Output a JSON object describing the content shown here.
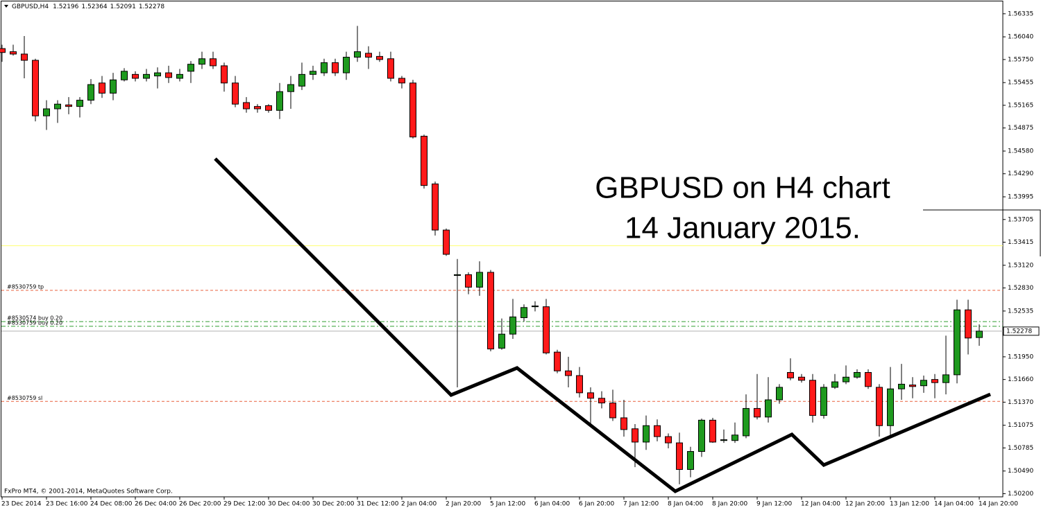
{
  "chart_data": {
    "type": "candlestick",
    "symbol": "GBPUSD,H4",
    "ohlc": [
      1.52196,
      1.52364,
      1.52091,
      1.52278
    ],
    "annotation": [
      "GBPUSD on H4 chart",
      "14 January 2015."
    ],
    "footer": "FxPro MT4, © 2001-2014, MetaQuotes Software Corp.",
    "categories": [
      "23 Dec 2014",
      null,
      null,
      null,
      "23 Dec 16:00",
      null,
      null,
      null,
      "24 Dec 08:00",
      null,
      null,
      null,
      "26 Dec 04:00",
      null,
      null,
      null,
      "26 Dec 20:00",
      null,
      null,
      null,
      "29 Dec 12:00",
      null,
      null,
      null,
      "30 Dec 04:00",
      null,
      null,
      null,
      "30 Dec 20:00",
      null,
      null,
      null,
      "31 Dec 12:00",
      null,
      null,
      null,
      "2 Jan 04:00",
      null,
      null,
      null,
      "2 Jan 20:00",
      null,
      null,
      null,
      "5 Jan 12:00",
      null,
      null,
      null,
      "6 Jan 04:00",
      null,
      null,
      null,
      "6 Jan 20:00",
      null,
      null,
      null,
      "7 Jan 12:00",
      null,
      null,
      null,
      "8 Jan 04:00",
      null,
      null,
      null,
      "8 Jan 20:00",
      null,
      null,
      null,
      "9 Jan 12:00",
      null,
      null,
      null,
      "12 Jan 04:00",
      null,
      null,
      null,
      "12 Jan 20:00",
      null,
      null,
      null,
      "13 Jan 12:00",
      null,
      null,
      null,
      "14 Jan 04:00",
      null,
      null,
      null,
      "14 Jan 20:00"
    ],
    "open": [
      1.5589,
      1.5585,
      1.5582,
      1.5574,
      1.5503,
      1.5512,
      1.5517,
      1.5515,
      1.5523,
      1.5545,
      1.5532,
      1.5549,
      1.5556,
      1.5551,
      1.5554,
      1.5558,
      1.5551,
      1.556,
      1.5569,
      1.5576,
      1.5567,
      1.5545,
      1.552,
      1.5515,
      1.5516,
      1.551,
      1.5534,
      1.5541,
      1.5556,
      1.5558,
      1.5571,
      1.5558,
      1.5578,
      1.5583,
      1.5579,
      1.5576,
      1.5551,
      1.5545,
      1.5477,
      1.5416,
      1.5357,
      1.5299,
      1.53,
      1.5284,
      1.5303,
      1.5206,
      1.5224,
      1.5245,
      1.5259,
      1.5259,
      1.5201,
      1.5177,
      1.5171,
      1.5149,
      1.5142,
      1.5136,
      1.5117,
      1.5103,
      1.5086,
      1.5107,
      1.5093,
      1.5085,
      1.5051,
      1.5074,
      1.5114,
      1.5088,
      1.5088,
      1.5094,
      1.5129,
      1.5118,
      1.514,
      1.5175,
      1.5169,
      1.5165,
      1.512,
      1.5156,
      1.5163,
      1.5169,
      1.5175,
      1.5156,
      1.5107,
      1.5154,
      1.5159,
      1.5158,
      1.5166,
      1.5162,
      1.5172,
      1.5255,
      1.52196
    ],
    "high": [
      1.5594,
      1.5594,
      1.5605,
      1.5576,
      1.5523,
      1.5523,
      1.5527,
      1.5527,
      1.555,
      1.5554,
      1.5558,
      1.5564,
      1.556,
      1.5563,
      1.5565,
      1.5567,
      1.5563,
      1.5573,
      1.5585,
      1.5585,
      1.5571,
      1.5554,
      1.5527,
      1.5518,
      1.5518,
      1.5545,
      1.5554,
      1.5571,
      1.5567,
      1.5576,
      1.5576,
      1.5585,
      1.5618,
      1.5592,
      1.5585,
      1.5585,
      1.5554,
      1.5549,
      1.5479,
      1.5419,
      1.5359,
      1.532,
      1.5303,
      1.5317,
      1.5306,
      1.5244,
      1.5269,
      1.5262,
      1.5266,
      1.5269,
      1.5204,
      1.5195,
      1.5182,
      1.5156,
      1.5151,
      1.5153,
      1.514,
      1.5109,
      1.512,
      1.5115,
      1.5097,
      1.5098,
      1.508,
      1.5116,
      1.5117,
      1.5102,
      1.5111,
      1.5147,
      1.5173,
      1.5169,
      1.516,
      1.5193,
      1.5173,
      1.5173,
      1.516,
      1.5173,
      1.5184,
      1.5179,
      1.5179,
      1.516,
      1.5182,
      1.5186,
      1.5169,
      1.5171,
      1.5173,
      1.5222,
      1.5268,
      1.5268,
      1.52364
    ],
    "low": [
      1.5572,
      1.558,
      1.5551,
      1.5496,
      1.5485,
      1.5494,
      1.5505,
      1.5501,
      1.5518,
      1.5526,
      1.5523,
      1.5547,
      1.5547,
      1.5547,
      1.5538,
      1.5545,
      1.5547,
      1.5545,
      1.5563,
      1.5563,
      1.5534,
      1.5514,
      1.5507,
      1.5507,
      1.5507,
      1.5499,
      1.5512,
      1.5536,
      1.5549,
      1.5554,
      1.5554,
      1.5549,
      1.5572,
      1.5563,
      1.5572,
      1.5547,
      1.5538,
      1.5474,
      1.541,
      1.535,
      1.5324,
      1.5156,
      1.5275,
      1.5273,
      1.5202,
      1.5204,
      1.5218,
      1.524,
      1.5253,
      1.5198,
      1.5174,
      1.5156,
      1.5143,
      1.5107,
      1.5129,
      1.5113,
      1.5093,
      1.5054,
      1.5076,
      1.5087,
      1.5078,
      1.5032,
      1.5041,
      1.5067,
      1.5085,
      1.5085,
      1.5085,
      1.5091,
      1.5115,
      1.5111,
      1.5135,
      1.5165,
      1.5162,
      1.5111,
      1.5116,
      1.5154,
      1.516,
      1.5167,
      1.5154,
      1.5093,
      1.5093,
      1.514,
      1.5142,
      1.5149,
      1.5142,
      1.5147,
      1.5161,
      1.5198,
      1.52091
    ],
    "close": [
      1.5584,
      1.5582,
      1.5574,
      1.5503,
      1.5512,
      1.5518,
      1.5515,
      1.5523,
      1.5543,
      1.5532,
      1.5549,
      1.556,
      1.5551,
      1.5556,
      1.5558,
      1.5552,
      1.5556,
      1.5569,
      1.5576,
      1.5567,
      1.5545,
      1.5518,
      1.5512,
      1.5512,
      1.551,
      1.5534,
      1.5543,
      1.5556,
      1.556,
      1.5571,
      1.5558,
      1.5578,
      1.5585,
      1.5578,
      1.5575,
      1.5551,
      1.5545,
      1.5476,
      1.5414,
      1.5357,
      1.5326,
      1.53,
      1.5284,
      1.5303,
      1.5205,
      1.5224,
      1.5246,
      1.5258,
      1.526,
      1.52,
      1.5177,
      1.5171,
      1.5149,
      1.5142,
      1.5136,
      1.5117,
      1.5102,
      1.5086,
      1.5107,
      1.5093,
      1.5085,
      1.5051,
      1.5074,
      1.5114,
      1.5086,
      1.5089,
      1.5095,
      1.5129,
      1.5118,
      1.514,
      1.5156,
      1.5168,
      1.5165,
      1.512,
      1.5156,
      1.5163,
      1.5169,
      1.5175,
      1.5157,
      1.5107,
      1.5154,
      1.516,
      1.5157,
      1.5165,
      1.5162,
      1.5172,
      1.5255,
      1.5219,
      1.52278
    ],
    "up_color": "#1f9a1f",
    "down_color": "#ff1a1a",
    "ylim": [
      1.5016,
      1.5644
    ],
    "yticks": [
      1.56335,
      {
        "value": 1.5604,
        "label": "1.56040"
      },
      {
        "value": 1.5575,
        "label": "1.55750"
      },
      1.55455,
      1.55165,
      1.54875,
      {
        "value": 1.5458,
        "label": "1.54580"
      },
      {
        "value": 1.5429,
        "label": "1.54290"
      },
      1.53995,
      1.53705,
      1.53415,
      {
        "value": 1.5312,
        "label": "1.53120"
      },
      {
        "value": 1.5283,
        "label": "1.52830"
      },
      1.52535,
      {
        "value": 1.5195,
        "label": "1.51950"
      },
      {
        "value": 1.5166,
        "label": "1.51660"
      },
      {
        "value": 1.5137,
        "label": "1.51370"
      },
      1.51075,
      1.50785,
      {
        "value": 1.5049,
        "label": "1.50490"
      },
      {
        "value": 1.502,
        "label": "1.50200"
      }
    ],
    "levels": [
      {
        "label": "#8530759 tp",
        "value": 1.528,
        "color": "#e8603c",
        "style": "dash"
      },
      {
        "label": "#8530574 buy 0.20",
        "value": 1.524,
        "color": "#2e9e2e",
        "style": "dashdot"
      },
      {
        "label": "#8530759 buy 0.20",
        "value": 1.5234,
        "color": "#2e9e2e",
        "style": "dashdot"
      },
      {
        "label": "#8530759 sl",
        "value": 1.5138,
        "color": "#e8603c",
        "style": "dash"
      }
    ],
    "hlines": [
      {
        "value": 1.5337,
        "color": "#ffff70"
      }
    ],
    "grid": false
  }
}
